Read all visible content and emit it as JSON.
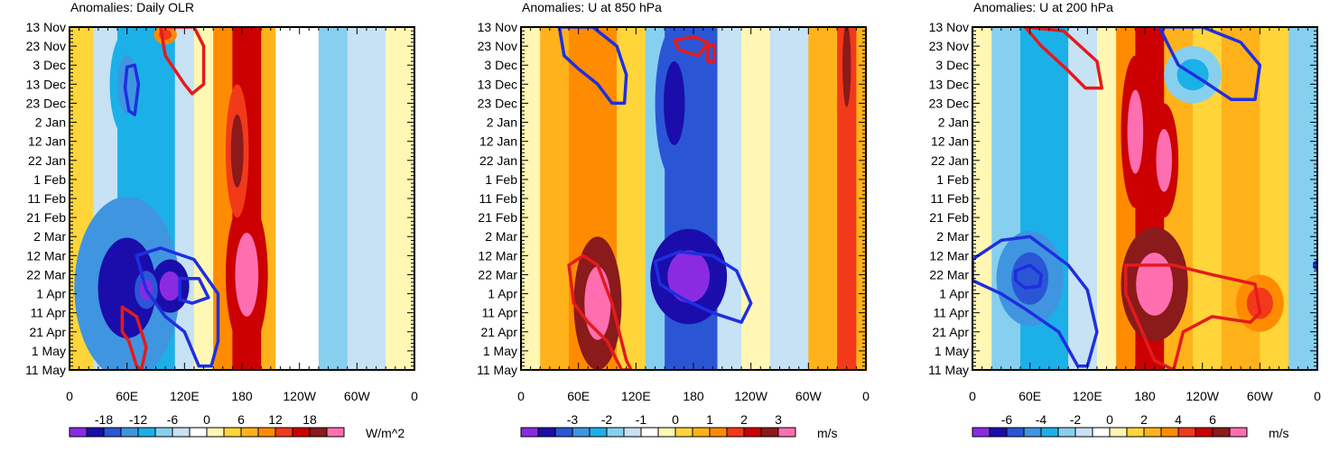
{
  "chart_data": [
    {
      "type": "heatmap",
      "title": "Anomalies: Daily OLR",
      "units": "W/m^2",
      "x_ticks": [
        "0",
        "60E",
        "120E",
        "180",
        "120W",
        "60W",
        "0"
      ],
      "y_ticks": [
        "13 Nov",
        "23 Nov",
        "3 Dec",
        "13 Dec",
        "23 Dec",
        "2 Jan",
        "12 Jan",
        "22 Jan",
        "1 Feb",
        "11 Feb",
        "21 Feb",
        "2 Mar",
        "12 Mar",
        "22 Mar",
        "1 Apr",
        "11 Apr",
        "21 Apr",
        "1 May",
        "11 May"
      ],
      "colorbar_labels": [
        "-18",
        "-12",
        "-6",
        "0",
        "6",
        "12",
        "18"
      ],
      "label_slots": [
        1,
        3,
        5,
        7,
        9,
        11,
        13
      ],
      "bands": [
        {
          "lon": [
            0,
            25
          ],
          "v": 0.25
        },
        {
          "lon": [
            25,
            50
          ],
          "v": -0.2
        },
        {
          "lon": [
            50,
            70
          ],
          "v": -0.55
        },
        {
          "lon": [
            70,
            110
          ],
          "v": -0.45
        },
        {
          "lon": [
            110,
            130
          ],
          "v": -0.25
        },
        {
          "lon": [
            130,
            150
          ],
          "v": 0.0
        },
        {
          "lon": [
            150,
            170
          ],
          "v": 0.45
        },
        {
          "lon": [
            170,
            200
          ],
          "v": 0.75
        },
        {
          "lon": [
            200,
            215
          ],
          "v": 0.3
        },
        {
          "lon": [
            215,
            260
          ],
          "v": -0.1
        },
        {
          "lon": [
            260,
            290
          ],
          "v": -0.3
        },
        {
          "lon": [
            290,
            330
          ],
          "v": -0.15
        },
        {
          "lon": [
            330,
            360
          ],
          "v": 0.0
        }
      ],
      "blobs": [
        {
          "lon": 60,
          "day": 137,
          "rx": 55,
          "ry": 48,
          "v": -0.95
        },
        {
          "lon": 105,
          "day": 136,
          "rx": 20,
          "ry": 14,
          "v": -1.2
        },
        {
          "lon": 80,
          "day": 138,
          "rx": 12,
          "ry": 10,
          "v": -1.1
        },
        {
          "lon": 60,
          "day": 30,
          "rx": 18,
          "ry": 28,
          "v": -0.6
        },
        {
          "lon": 185,
          "day": 130,
          "rx": 22,
          "ry": 40,
          "v": 1.05
        },
        {
          "lon": 175,
          "day": 65,
          "rx": 12,
          "ry": 35,
          "v": 0.9
        },
        {
          "lon": 100,
          "day": 4,
          "rx": 12,
          "ry": 5,
          "v": 0.6
        }
      ],
      "contours": [
        {
          "color": "red",
          "points": [
            [
              95,
              0
            ],
            [
              130,
              0
            ],
            [
              140,
              10
            ],
            [
              140,
              30
            ],
            [
              128,
              35
            ],
            [
              120,
              30
            ],
            [
              100,
              15
            ],
            [
              95,
              0
            ]
          ]
        },
        {
          "color": "blue",
          "points": [
            [
              60,
              21
            ],
            [
              68,
              20
            ],
            [
              72,
              30
            ],
            [
              68,
              46
            ],
            [
              62,
              44
            ],
            [
              58,
              32
            ],
            [
              60,
              21
            ]
          ]
        },
        {
          "color": "blue",
          "points": [
            [
              70,
              120
            ],
            [
              95,
              116
            ],
            [
              130,
              122
            ],
            [
              155,
              140
            ],
            [
              155,
              165
            ],
            [
              148,
              178
            ],
            [
              135,
              178
            ],
            [
              120,
              160
            ],
            [
              100,
              152
            ],
            [
              80,
              138
            ],
            [
              70,
              120
            ]
          ]
        },
        {
          "color": "blue",
          "points": [
            [
              115,
              132
            ],
            [
              135,
              132
            ],
            [
              145,
              142
            ],
            [
              128,
              145
            ],
            [
              115,
              143
            ],
            [
              115,
              132
            ]
          ]
        },
        {
          "color": "red",
          "points": [
            [
              55,
              147
            ],
            [
              70,
              152
            ],
            [
              80,
              168
            ],
            [
              75,
              180
            ],
            [
              70,
              178
            ],
            [
              62,
              165
            ],
            [
              55,
              160
            ],
            [
              55,
              147
            ]
          ]
        }
      ]
    },
    {
      "type": "heatmap",
      "title": "Anomalies: U at 850 hPa",
      "units": "m/s",
      "x_ticks": [
        "0",
        "60E",
        "120E",
        "180",
        "120W",
        "60W",
        "0"
      ],
      "y_ticks": [
        "13 Nov",
        "23 Nov",
        "3 Dec",
        "13 Dec",
        "23 Dec",
        "2 Jan",
        "12 Jan",
        "22 Jan",
        "1 Feb",
        "11 Feb",
        "21 Feb",
        "2 Mar",
        "12 Mar",
        "22 Mar",
        "1 Apr",
        "11 Apr",
        "21 Apr",
        "1 May",
        "11 May"
      ],
      "colorbar_labels": [
        "-3",
        "-2",
        "-1",
        "0",
        "1",
        "2",
        "3"
      ],
      "label_slots": [
        2,
        4,
        6,
        8,
        10,
        12,
        14
      ],
      "bands": [
        {
          "lon": [
            0,
            20
          ],
          "v": 0.0
        },
        {
          "lon": [
            20,
            50
          ],
          "v": 0.3
        },
        {
          "lon": [
            50,
            100
          ],
          "v": 0.5
        },
        {
          "lon": [
            100,
            130
          ],
          "v": 0.15
        },
        {
          "lon": [
            130,
            150
          ],
          "v": -0.35
        },
        {
          "lon": [
            150,
            205
          ],
          "v": -0.75
        },
        {
          "lon": [
            205,
            230
          ],
          "v": -0.25
        },
        {
          "lon": [
            230,
            260
          ],
          "v": 0.1
        },
        {
          "lon": [
            260,
            300
          ],
          "v": -0.15
        },
        {
          "lon": [
            300,
            330
          ],
          "v": 0.4
        },
        {
          "lon": [
            330,
            350
          ],
          "v": 0.7
        },
        {
          "lon": [
            350,
            360
          ],
          "v": 0.35
        }
      ],
      "blobs": [
        {
          "lon": 80,
          "day": 145,
          "rx": 25,
          "ry": 35,
          "v": 1.2
        },
        {
          "lon": 175,
          "day": 131,
          "rx": 40,
          "ry": 25,
          "v": -1.15
        },
        {
          "lon": 160,
          "day": 40,
          "rx": 20,
          "ry": 40,
          "v": -1.0
        },
        {
          "lon": 340,
          "day": 20,
          "rx": 8,
          "ry": 40,
          "v": 0.9
        }
      ],
      "contours": [
        {
          "color": "blue",
          "points": [
            [
              40,
              0
            ],
            [
              75,
              0
            ],
            [
              100,
              10
            ],
            [
              110,
              25
            ],
            [
              108,
              40
            ],
            [
              95,
              40
            ],
            [
              80,
              30
            ],
            [
              60,
              22
            ],
            [
              45,
              15
            ],
            [
              40,
              0
            ]
          ]
        },
        {
          "color": "red",
          "points": [
            [
              160,
              7
            ],
            [
              180,
              5
            ],
            [
              195,
              8
            ],
            [
              185,
              15
            ],
            [
              165,
              12
            ],
            [
              160,
              7
            ]
          ]
        },
        {
          "color": "red",
          "points": [
            [
              195,
              10
            ],
            [
              202,
              9
            ],
            [
              202,
              18
            ],
            [
              195,
              18
            ],
            [
              195,
              10
            ]
          ]
        },
        {
          "color": "blue",
          "points": [
            [
              140,
              123
            ],
            [
              165,
              118
            ],
            [
              200,
              120
            ],
            [
              225,
              128
            ],
            [
              240,
              145
            ],
            [
              230,
              155
            ],
            [
              200,
              150
            ],
            [
              170,
              143
            ],
            [
              145,
              135
            ],
            [
              140,
              123
            ]
          ]
        },
        {
          "color": "red",
          "points": [
            [
              50,
              125
            ],
            [
              65,
              120
            ],
            [
              80,
              125
            ],
            [
              95,
              145
            ],
            [
              110,
              175
            ],
            [
              115,
              180
            ],
            [
              105,
              180
            ],
            [
              90,
              165
            ],
            [
              70,
              155
            ],
            [
              55,
              145
            ],
            [
              50,
              125
            ]
          ]
        }
      ]
    },
    {
      "type": "heatmap",
      "title": "Anomalies: U at 200 hPa",
      "units": "m/s",
      "x_ticks": [
        "0",
        "60E",
        "120E",
        "180",
        "120W",
        "60W",
        "0"
      ],
      "y_ticks": [
        "13 Nov",
        "23 Nov",
        "3 Dec",
        "13 Dec",
        "23 Dec",
        "2 Jan",
        "12 Jan",
        "22 Jan",
        "1 Feb",
        "11 Feb",
        "21 Feb",
        "2 Mar",
        "12 Mar",
        "22 Mar",
        "1 Apr",
        "11 Apr",
        "21 Apr",
        "1 May",
        "11 May"
      ],
      "colorbar_labels": [
        "-6",
        "-4",
        "-2",
        "0",
        "2",
        "4",
        "6"
      ],
      "label_slots": [
        1,
        3,
        5,
        7,
        9,
        11,
        13
      ],
      "bands": [
        {
          "lon": [
            0,
            20
          ],
          "v": 0.0
        },
        {
          "lon": [
            20,
            50
          ],
          "v": -0.35
        },
        {
          "lon": [
            50,
            100
          ],
          "v": -0.45
        },
        {
          "lon": [
            100,
            130
          ],
          "v": -0.2
        },
        {
          "lon": [
            130,
            150
          ],
          "v": 0.1
        },
        {
          "lon": [
            150,
            170
          ],
          "v": 0.55
        },
        {
          "lon": [
            170,
            200
          ],
          "v": 0.8
        },
        {
          "lon": [
            200,
            230
          ],
          "v": 0.4
        },
        {
          "lon": [
            230,
            260
          ],
          "v": 0.2
        },
        {
          "lon": [
            260,
            300
          ],
          "v": 0.3
        },
        {
          "lon": [
            300,
            330
          ],
          "v": 0.15
        },
        {
          "lon": [
            330,
            360
          ],
          "v": -0.3
        }
      ],
      "blobs": [
        {
          "lon": 190,
          "day": 135,
          "rx": 35,
          "ry": 30,
          "v": 1.3
        },
        {
          "lon": 170,
          "day": 55,
          "rx": 15,
          "ry": 40,
          "v": 1.1
        },
        {
          "lon": 200,
          "day": 70,
          "rx": 15,
          "ry": 30,
          "v": 1.05
        },
        {
          "lon": 60,
          "day": 132,
          "rx": 35,
          "ry": 25,
          "v": -0.8
        },
        {
          "lon": 230,
          "day": 25,
          "rx": 30,
          "ry": 15,
          "v": -0.55
        },
        {
          "lon": 300,
          "day": 145,
          "rx": 25,
          "ry": 15,
          "v": 0.7
        }
      ],
      "contours": [
        {
          "color": "red",
          "points": [
            [
              55,
              0
            ],
            [
              95,
              2
            ],
            [
              130,
              18
            ],
            [
              135,
              32
            ],
            [
              118,
              32
            ],
            [
              98,
              22
            ],
            [
              72,
              10
            ],
            [
              55,
              0
            ]
          ]
        },
        {
          "color": "blue",
          "points": [
            [
              195,
              0
            ],
            [
              240,
              0
            ],
            [
              280,
              8
            ],
            [
              300,
              20
            ],
            [
              295,
              38
            ],
            [
              270,
              38
            ],
            [
              240,
              28
            ],
            [
              215,
              20
            ],
            [
              195,
              0
            ]
          ]
        },
        {
          "color": "red",
          "points": [
            [
              160,
              125
            ],
            [
              210,
              125
            ],
            [
              250,
              130
            ],
            [
              295,
              135
            ],
            [
              300,
              150
            ],
            [
              290,
              155
            ],
            [
              250,
              152
            ],
            [
              220,
              160
            ],
            [
              210,
              180
            ],
            [
              190,
              175
            ],
            [
              160,
              140
            ],
            [
              160,
              125
            ]
          ]
        },
        {
          "color": "blue",
          "points": [
            [
              0,
              122
            ],
            [
              30,
              112
            ],
            [
              60,
              110
            ],
            [
              100,
              125
            ],
            [
              120,
              138
            ],
            [
              130,
              160
            ],
            [
              120,
              178
            ],
            [
              110,
              178
            ],
            [
              90,
              160
            ],
            [
              55,
              148
            ],
            [
              30,
              140
            ],
            [
              0,
              133
            ],
            [
              0,
              122
            ]
          ]
        },
        {
          "color": "blue",
          "points": [
            [
              45,
              128
            ],
            [
              60,
              125
            ],
            [
              72,
              130
            ],
            [
              70,
              136
            ],
            [
              55,
              137
            ],
            [
              45,
              133
            ],
            [
              45,
              128
            ]
          ]
        },
        {
          "color": "blue",
          "points": [
            [
              360,
              123
            ],
            [
              357,
              124
            ],
            [
              357,
              126
            ],
            [
              360,
              127
            ],
            [
              360,
              123
            ]
          ]
        }
      ]
    }
  ],
  "colors": {
    "positive_contour": "#e41a1c",
    "negative_contour": "#1f2ee0",
    "palette": [
      "#8a2be2",
      "#1a0dab",
      "#2a56d6",
      "#3f95e0",
      "#1bb0e8",
      "#87cfef",
      "#c6e2f4",
      "#ffffff",
      "#fff7b3",
      "#ffd53a",
      "#ffb21a",
      "#ff8c00",
      "#f23a1a",
      "#cc0000",
      "#8b1a1a",
      "#ff6fb0"
    ]
  }
}
